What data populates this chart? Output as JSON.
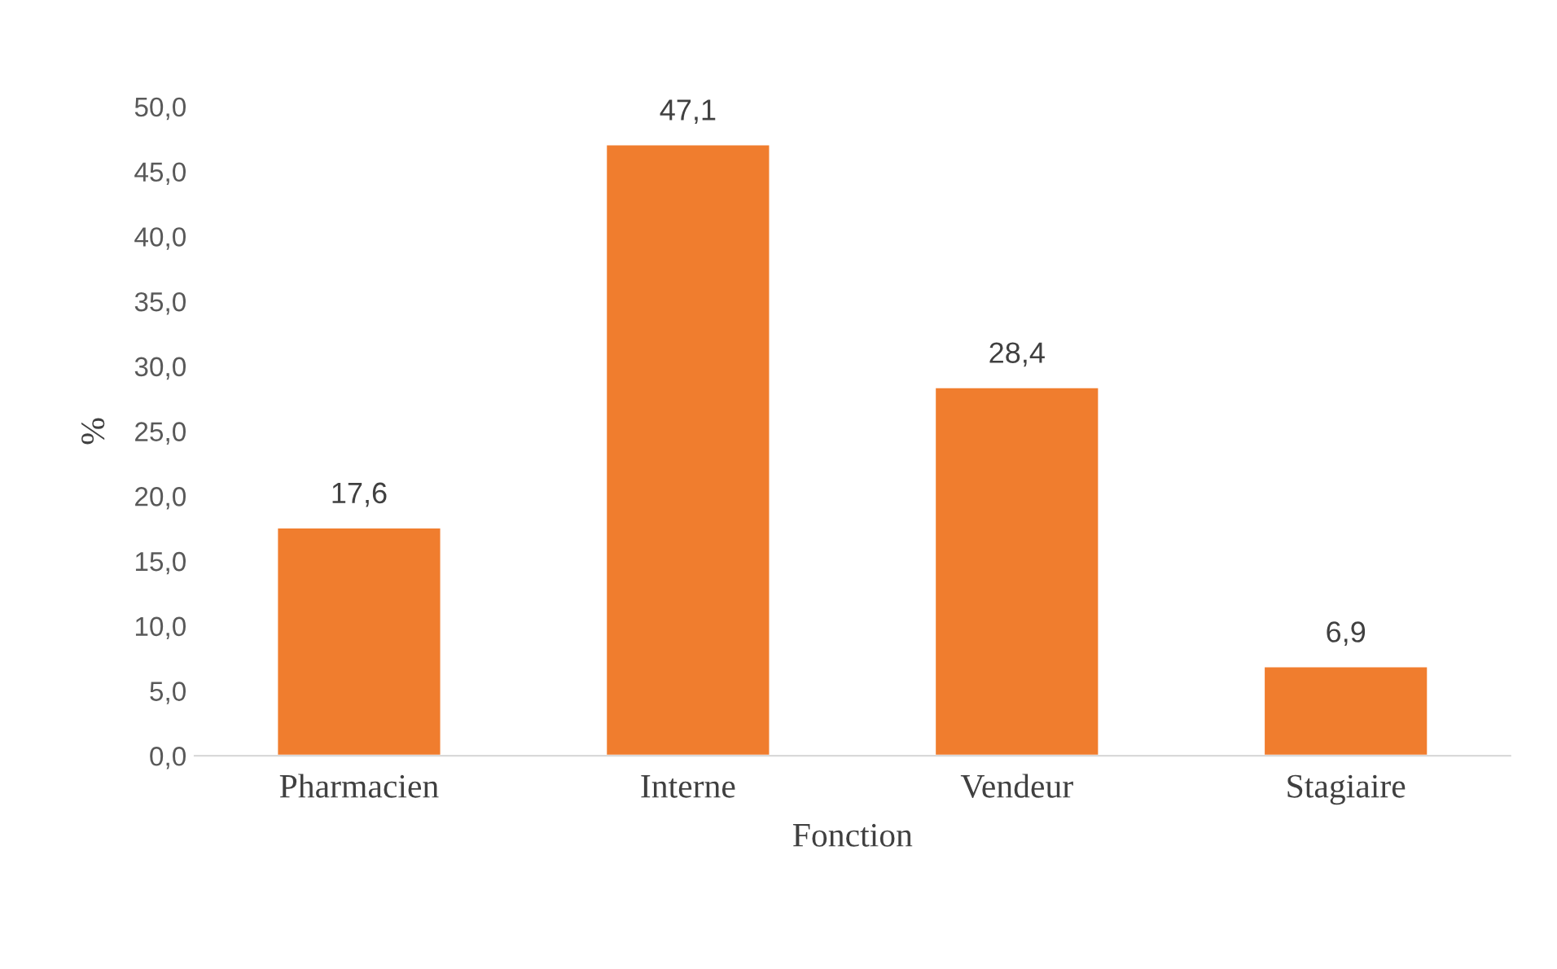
{
  "chart_data": {
    "type": "bar",
    "xlabel": "Fonction",
    "ylabel": "%",
    "categories": [
      "Pharmacien",
      "Interne",
      "Vendeur",
      "Stagiaire"
    ],
    "values": [
      17.6,
      47.1,
      28.4,
      6.9
    ],
    "value_labels": [
      "17,6",
      "47,1",
      "28,4",
      "6,9"
    ],
    "color": "#f07d2e",
    "ylim": [
      0,
      50
    ],
    "yticks": [
      {
        "value": 0,
        "label": "0,0"
      },
      {
        "value": 5,
        "label": "5,0"
      },
      {
        "value": 10,
        "label": "10,0"
      },
      {
        "value": 15,
        "label": "15,0"
      },
      {
        "value": 20,
        "label": "20,0"
      },
      {
        "value": 25,
        "label": "25,0"
      },
      {
        "value": 30,
        "label": "30,0"
      },
      {
        "value": 35,
        "label": "35,0"
      },
      {
        "value": 40,
        "label": "40,0"
      },
      {
        "value": 45,
        "label": "45,0"
      },
      {
        "value": 50,
        "label": "50,0"
      }
    ],
    "grid": false,
    "legend": false
  }
}
